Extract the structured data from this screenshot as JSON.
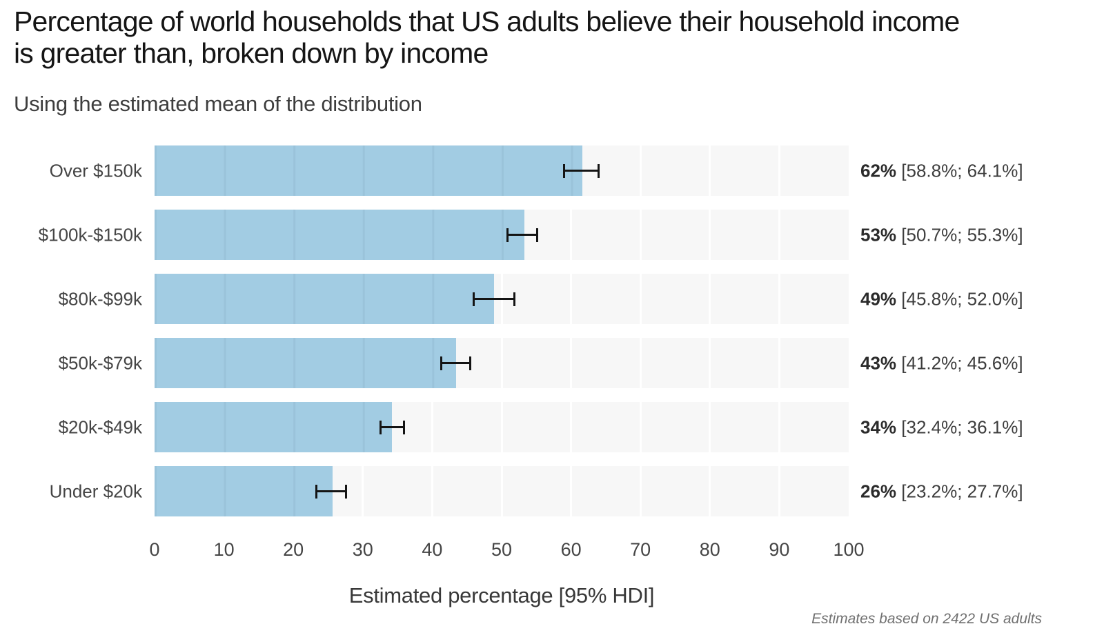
{
  "title": {
    "line1": "Percentage of world households that US adults believe their household income",
    "line2": "is greater than, broken down by income"
  },
  "subtitle": "Using the estimated mean of the distribution",
  "footnote": "Estimates based on 2422 US adults",
  "chart_data": {
    "type": "bar",
    "orientation": "horizontal",
    "title": "Percentage of world households that US adults believe their household income is greater than, broken down by income",
    "subtitle": "Using the estimated mean of the distribution",
    "xlabel": "Estimated percentage [95% HDI]",
    "xlim": [
      0,
      100
    ],
    "xticks": [
      0,
      10,
      20,
      30,
      40,
      50,
      60,
      70,
      80,
      90,
      100
    ],
    "grid": "white vertical gridlines every 10 units over light-gray full-length tracks",
    "legend": "none",
    "categories": [
      "Over $150k",
      "$100k-$150k",
      "$80k-$99k",
      "$50k-$79k",
      "$20k-$49k",
      "Under $20k"
    ],
    "rows": [
      {
        "category": "Over $150k",
        "mean": 61.6,
        "ci_low": 58.8,
        "ci_high": 64.1,
        "ci_span": 5.3,
        "pct_label": "62%",
        "ci_label": "[58.8%; 64.1%]"
      },
      {
        "category": "$100k-$150k",
        "mean": 53.3,
        "ci_low": 50.7,
        "ci_high": 55.3,
        "ci_span": 4.6,
        "pct_label": "53%",
        "ci_label": "[50.7%; 55.3%]"
      },
      {
        "category": "$80k-$99k",
        "mean": 48.9,
        "ci_low": 45.8,
        "ci_high": 52.0,
        "ci_span": 6.2,
        "pct_label": "49%",
        "ci_label": "[45.8%; 52.0%]"
      },
      {
        "category": "$50k-$79k",
        "mean": 43.4,
        "ci_low": 41.2,
        "ci_high": 45.6,
        "ci_span": 4.4,
        "pct_label": "43%",
        "ci_label": "[41.2%; 45.6%]"
      },
      {
        "category": "$20k-$49k",
        "mean": 34.2,
        "ci_low": 32.4,
        "ci_high": 36.1,
        "ci_span": 3.7,
        "pct_label": "34%",
        "ci_label": "[32.4%; 36.1%]"
      },
      {
        "category": "Under $20k",
        "mean": 25.6,
        "ci_low": 23.2,
        "ci_high": 27.7,
        "ci_span": 4.5,
        "pct_label": "26%",
        "ci_label": "[23.2%; 27.7%]"
      }
    ],
    "colors": {
      "bar": "#a2cce3",
      "track": "#f7f7f7",
      "gridline": "#ffffff",
      "whisker": "#141414",
      "title_text": "#151515",
      "body_text": "#454545"
    }
  }
}
